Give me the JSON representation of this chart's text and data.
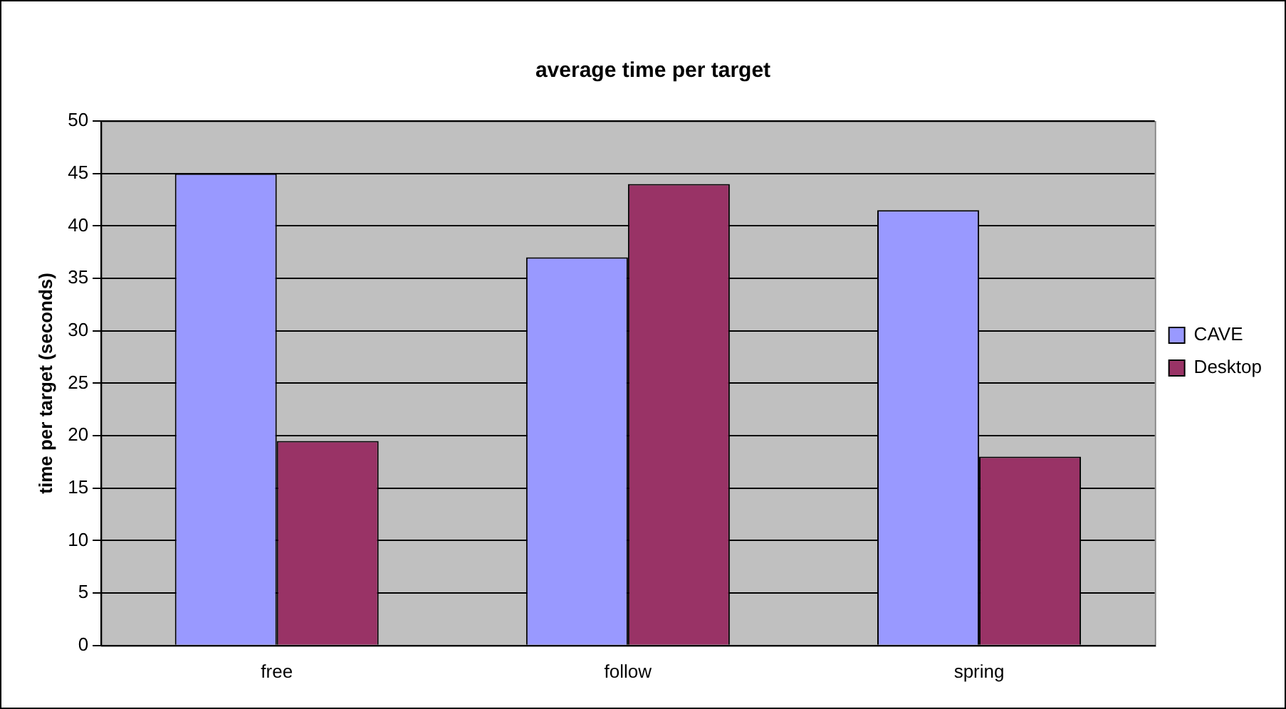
{
  "chart_data": {
    "type": "bar",
    "title": "average time per target",
    "ylabel": "time per target (seconds)",
    "categories": [
      "free",
      "follow",
      "spring"
    ],
    "series": [
      {
        "name": "CAVE",
        "color": "#9999ff",
        "values": [
          45,
          37,
          41.5
        ]
      },
      {
        "name": "Desktop",
        "color": "#993366",
        "values": [
          19.5,
          44,
          18
        ]
      }
    ],
    "ylim": [
      0,
      50
    ],
    "yticks": [
      0,
      5,
      10,
      15,
      20,
      25,
      30,
      35,
      40,
      45,
      50
    ],
    "grid": "y",
    "legend": "right"
  }
}
